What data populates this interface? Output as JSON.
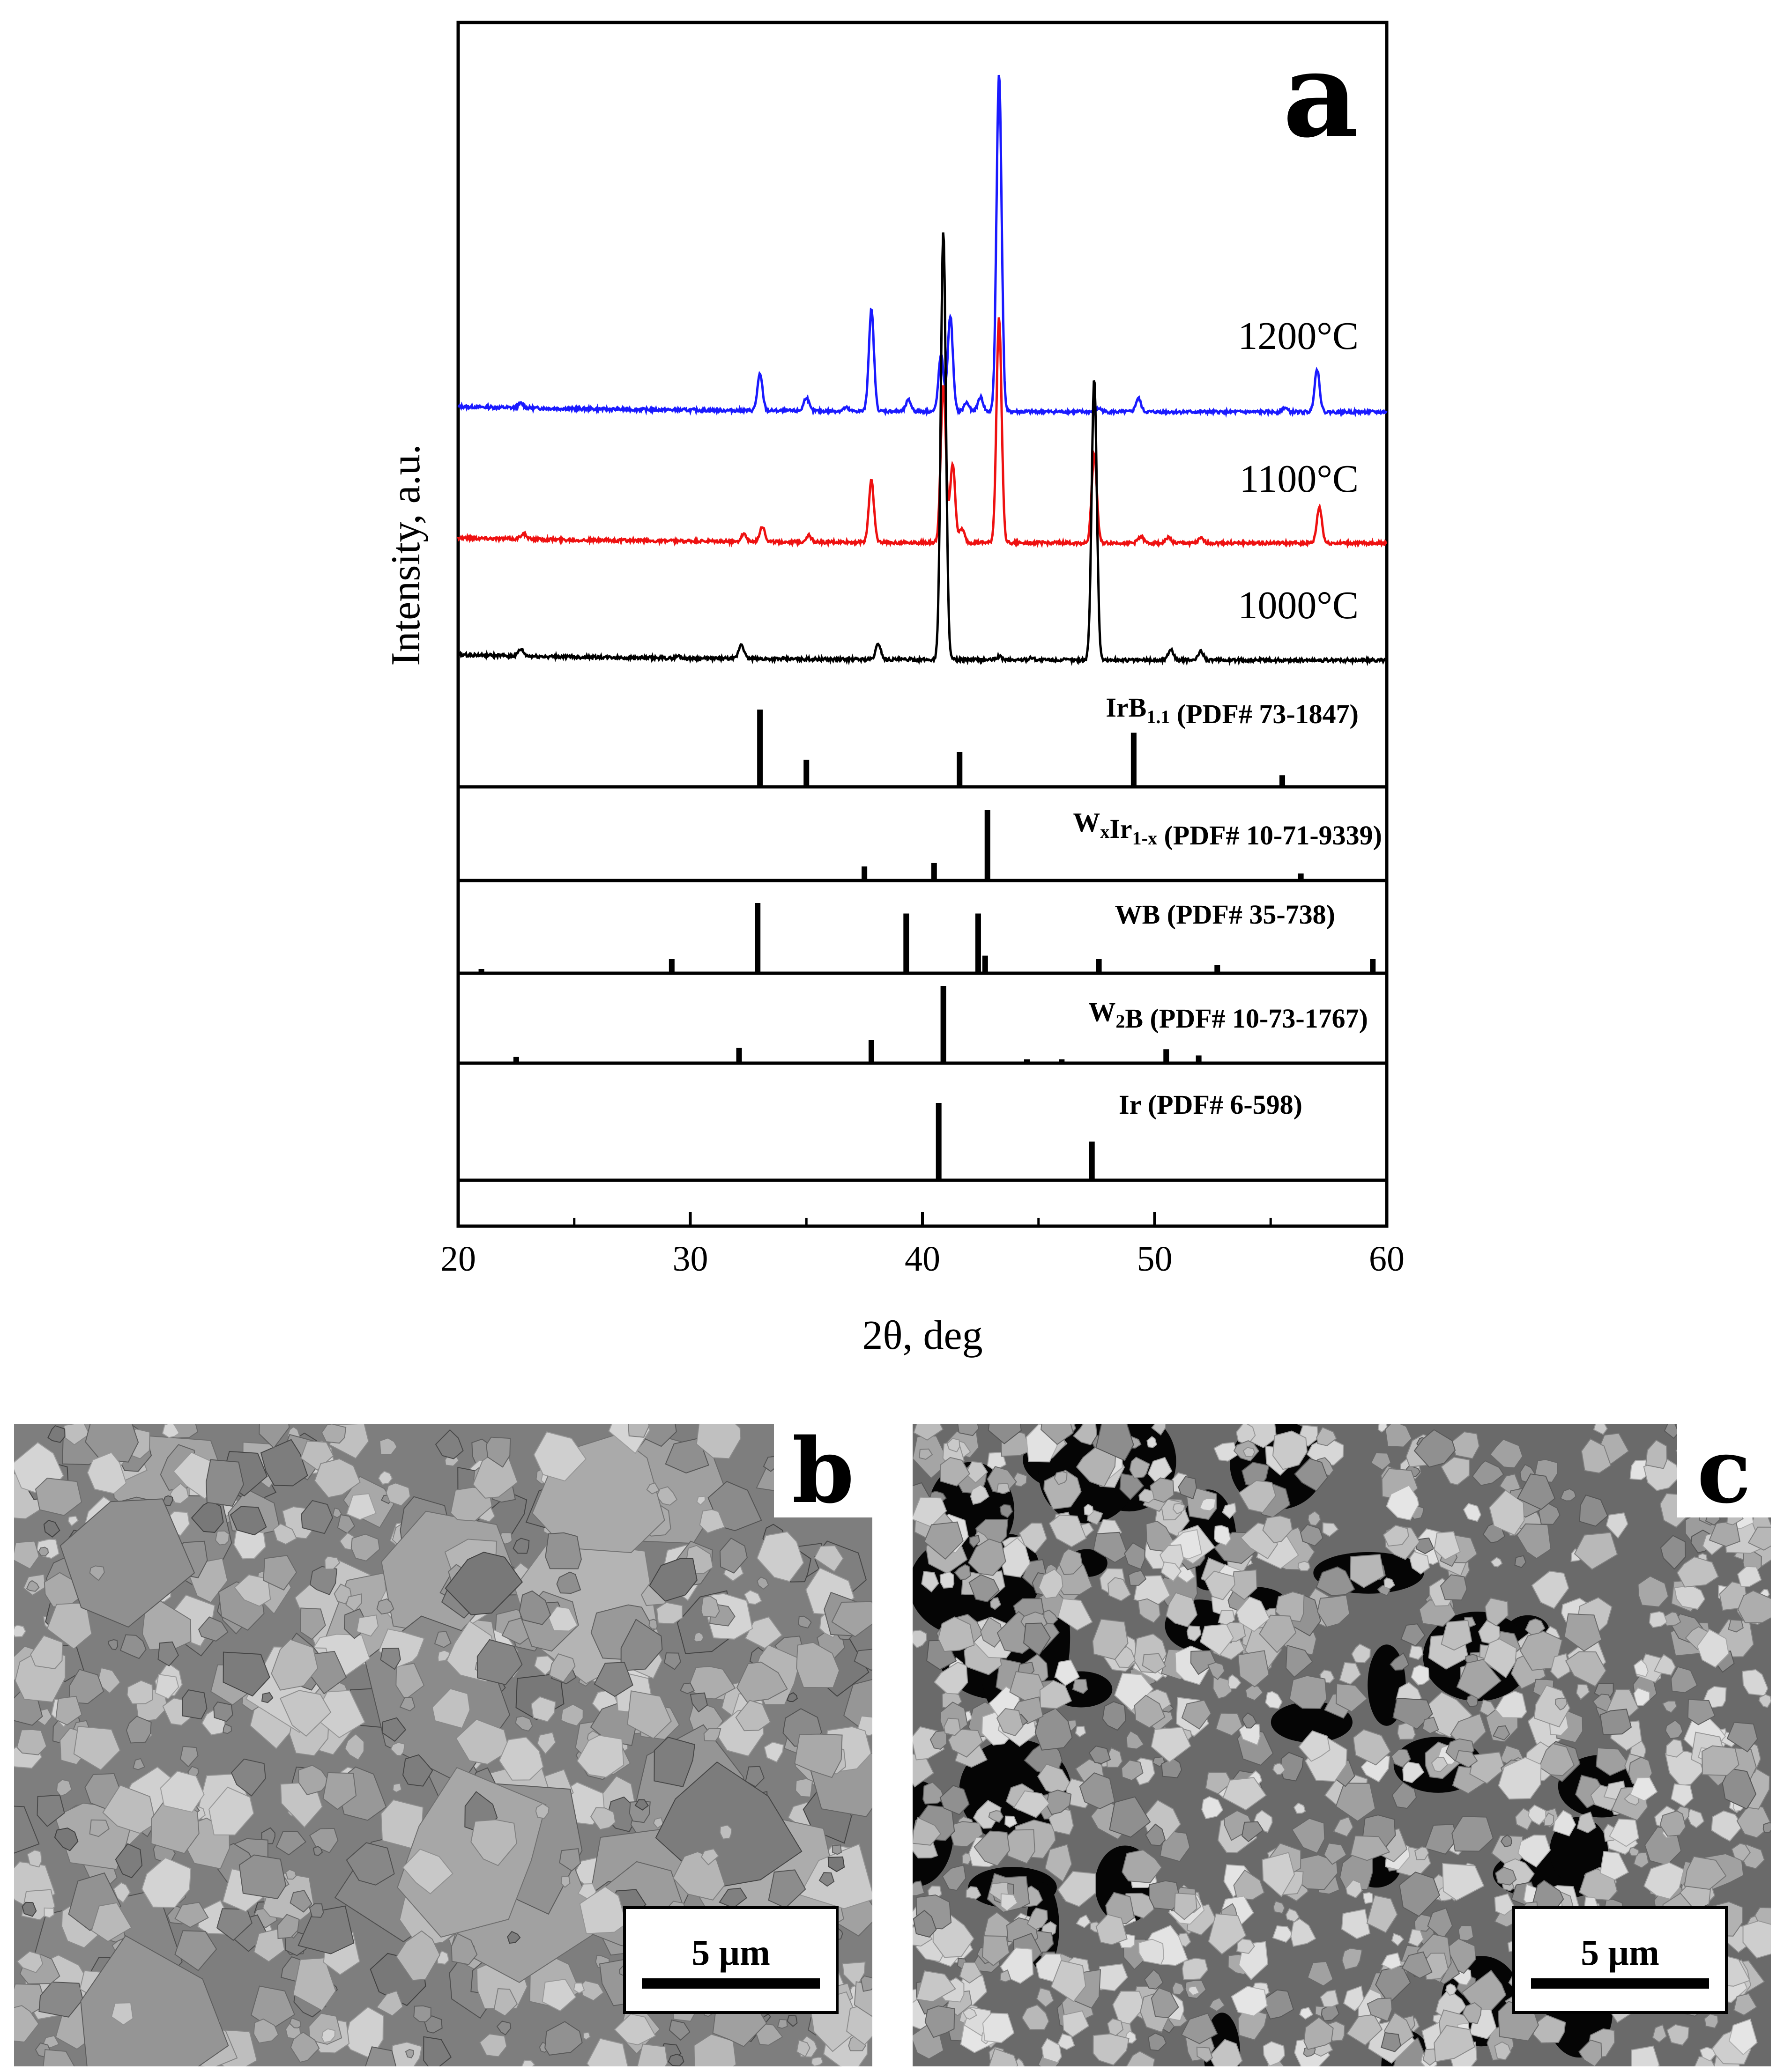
{
  "chart_data": {
    "type": "line",
    "panel_label": "a",
    "xlabel": "2θ, deg",
    "ylabel": "Intensity, a.u.",
    "xlim": [
      20,
      60
    ],
    "x_ticks": [
      20,
      30,
      40,
      50,
      60
    ],
    "grid": false,
    "series": [
      {
        "name": "1200°C",
        "color": "#1a1aff",
        "peaks": [
          [
            22.7,
            0.4
          ],
          [
            33.0,
            3.2
          ],
          [
            35.0,
            1.2
          ],
          [
            36.7,
            0.3
          ],
          [
            37.8,
            9.0
          ],
          [
            39.4,
            1.0
          ],
          [
            40.8,
            5.0
          ],
          [
            41.2,
            8.5
          ],
          [
            41.9,
            0.8
          ],
          [
            42.5,
            1.3
          ],
          [
            43.3,
            30.0
          ],
          [
            47.6,
            0.3
          ],
          [
            49.3,
            1.2
          ],
          [
            55.6,
            0.4
          ],
          [
            57.0,
            3.8
          ]
        ]
      },
      {
        "name": "1100°C",
        "color": "#ee1111",
        "peaks": [
          [
            22.8,
            0.5
          ],
          [
            32.3,
            0.7
          ],
          [
            33.1,
            1.4
          ],
          [
            35.1,
            0.6
          ],
          [
            37.8,
            5.5
          ],
          [
            40.9,
            14.0
          ],
          [
            41.3,
            7.0
          ],
          [
            41.7,
            1.2
          ],
          [
            43.3,
            20.0
          ],
          [
            47.4,
            8.0
          ],
          [
            49.4,
            0.6
          ],
          [
            50.6,
            0.5
          ],
          [
            52.0,
            0.4
          ],
          [
            57.1,
            3.2
          ]
        ]
      },
      {
        "name": "1000°C",
        "color": "#000000",
        "peaks": [
          [
            22.7,
            0.6
          ],
          [
            29.5,
            0.2
          ],
          [
            32.2,
            1.3
          ],
          [
            38.1,
            1.4
          ],
          [
            40.9,
            38.0
          ],
          [
            43.3,
            0.3
          ],
          [
            44.7,
            0.2
          ],
          [
            47.4,
            25.0
          ],
          [
            50.7,
            1.0
          ],
          [
            52.0,
            0.8
          ]
        ]
      }
    ],
    "reference_patterns": [
      {
        "label": "IrB",
        "sub": "1.1",
        "rest": " (PDF# 73-1847)",
        "lines": [
          [
            33.0,
            1.0
          ],
          [
            35.0,
            0.35
          ],
          [
            41.6,
            0.45
          ],
          [
            49.1,
            0.7
          ],
          [
            55.5,
            0.15
          ]
        ]
      },
      {
        "label": "W",
        "sub": "x",
        "label2": "Ir",
        "sub2": "1-x",
        "rest": " (PDF# 10-71-9339)",
        "lines": [
          [
            37.5,
            0.2
          ],
          [
            40.5,
            0.25
          ],
          [
            42.8,
            1.0
          ],
          [
            56.3,
            0.1
          ]
        ]
      },
      {
        "label": "WB (PDF# 35-738)",
        "lines": [
          [
            21.0,
            0.06
          ],
          [
            29.2,
            0.2
          ],
          [
            32.9,
            1.0
          ],
          [
            39.3,
            0.85
          ],
          [
            42.4,
            0.85
          ],
          [
            42.7,
            0.25
          ],
          [
            47.6,
            0.2
          ],
          [
            52.7,
            0.12
          ],
          [
            59.4,
            0.2
          ]
        ]
      },
      {
        "label": "W",
        "sub": "2",
        "rest": "B (PDF# 10-73-1767)",
        "lines": [
          [
            22.5,
            0.08
          ],
          [
            32.1,
            0.2
          ],
          [
            37.8,
            0.3
          ],
          [
            40.9,
            1.0
          ],
          [
            44.5,
            0.05
          ],
          [
            46.0,
            0.05
          ],
          [
            50.5,
            0.18
          ],
          [
            51.9,
            0.1
          ]
        ]
      },
      {
        "label": "Ir (PDF# 6-598)",
        "lines": [
          [
            40.7,
            1.0
          ],
          [
            47.3,
            0.5
          ]
        ]
      }
    ]
  },
  "sem_images": [
    {
      "panel_label": "b",
      "scale_label": "5 μm"
    },
    {
      "panel_label": "c",
      "scale_label": "5 μm"
    }
  ]
}
